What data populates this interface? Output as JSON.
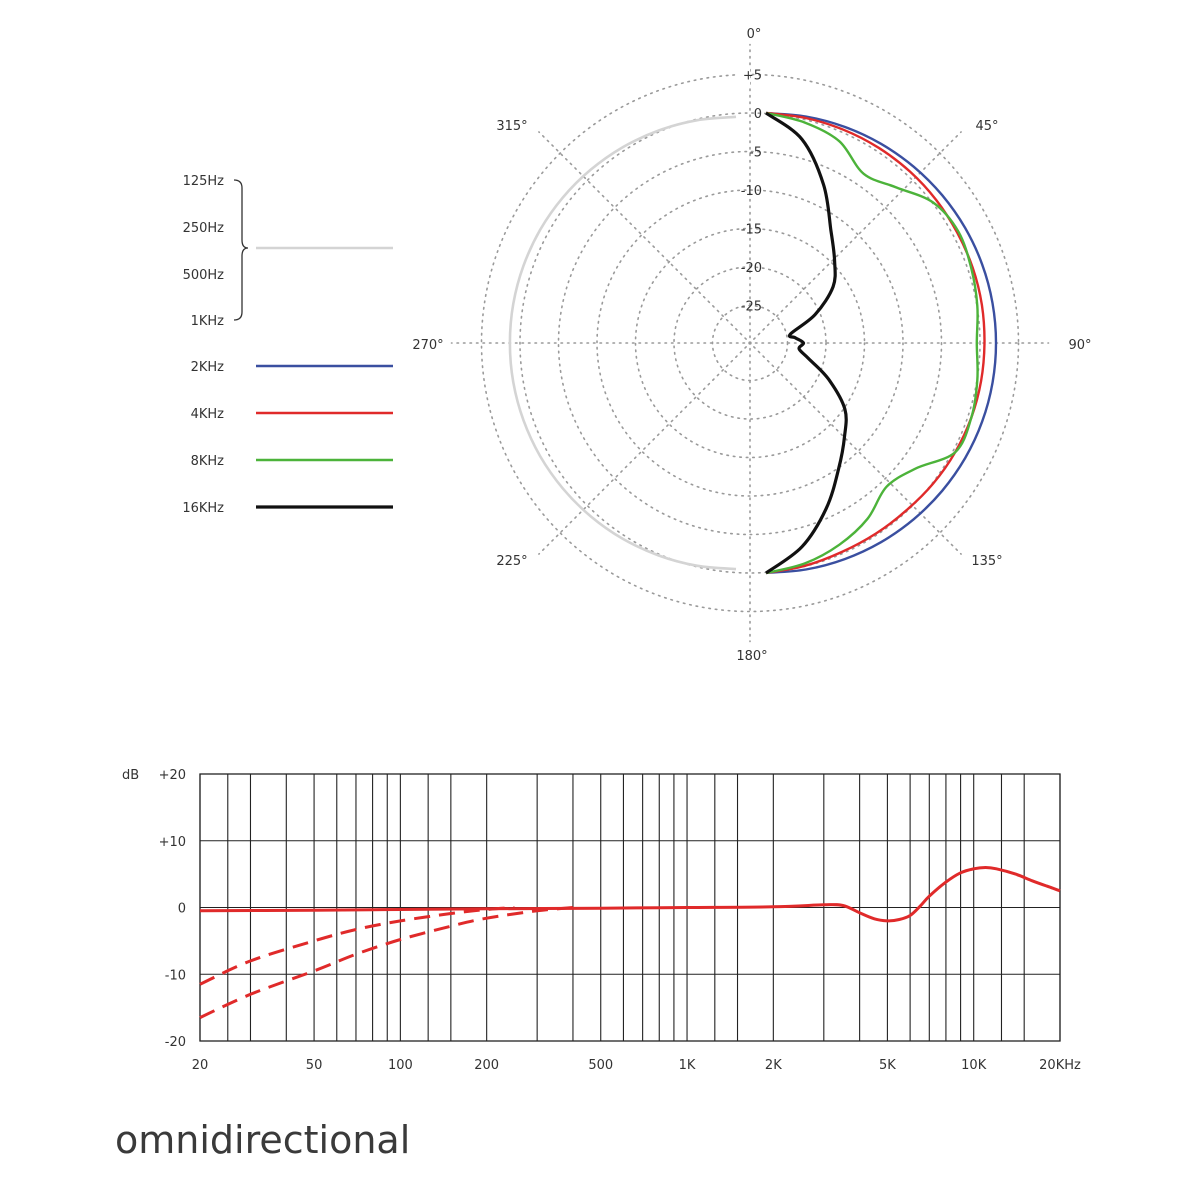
{
  "caption": "omnidirectional",
  "chart_data": [
    {
      "type": "polar",
      "title": "",
      "angle_labels": [
        "0°",
        "45°",
        "90°",
        "135°",
        "180°",
        "225°",
        "270°",
        "315°"
      ],
      "angle_values_deg": [
        0,
        45,
        90,
        135,
        180,
        225,
        270,
        315
      ],
      "radial_ticks": [
        "+5",
        "0",
        "-5",
        "-10",
        "-15",
        "-20",
        "-25"
      ],
      "radial_tick_values": [
        5,
        0,
        -5,
        -10,
        -15,
        -20,
        -25
      ],
      "rlim": [
        -30,
        5
      ],
      "grid": true,
      "legend_position": "left",
      "legend_group_labels": [
        "125Hz",
        "250Hz",
        "500Hz",
        "1KHz"
      ],
      "series": [
        {
          "name": "125Hz–1KHz",
          "color": "#d4d4d4",
          "angles": [
            180,
            190,
            200,
            210,
            220,
            230,
            240,
            250,
            260,
            270,
            280,
            290,
            300,
            310,
            320,
            330,
            340,
            350,
            360
          ],
          "values": [
            -0.5,
            -0.5,
            -0.5,
            -0.5,
            -0.5,
            -0.5,
            -0.5,
            -0.5,
            -0.5,
            -0.5,
            -0.5,
            -0.5,
            -0.5,
            -0.5,
            -0.5,
            -0.5,
            -0.5,
            -0.5,
            -0.5
          ]
        },
        {
          "name": "2KHz",
          "color": "#3a4fa0",
          "angles": [
            0,
            10,
            20,
            30,
            40,
            50,
            60,
            70,
            80,
            90,
            100,
            110,
            120,
            130,
            140,
            150,
            160,
            170,
            180
          ],
          "values": [
            0,
            0,
            0,
            0,
            0,
            0,
            0,
            0,
            0,
            0,
            0,
            0,
            0,
            0,
            0,
            0,
            0,
            0,
            0
          ]
        },
        {
          "name": "4KHz",
          "color": "#e02a2a",
          "angles": [
            0,
            10,
            20,
            30,
            40,
            50,
            60,
            70,
            80,
            90,
            100,
            110,
            120,
            130,
            140,
            150,
            160,
            170,
            180
          ],
          "values": [
            0,
            -0.2,
            -0.4,
            -0.6,
            -0.8,
            -1.0,
            -1.2,
            -1.3,
            -1.4,
            -1.5,
            -1.5,
            -1.5,
            -1.5,
            -1.5,
            -1.5,
            -1.3,
            -1.0,
            -0.5,
            0
          ]
        },
        {
          "name": "8KHz",
          "color": "#4cb33a",
          "angles": [
            0,
            10,
            20,
            30,
            40,
            50,
            60,
            70,
            80,
            90,
            100,
            110,
            120,
            130,
            140,
            150,
            160,
            170,
            180
          ],
          "values": [
            0,
            -0.8,
            -2.0,
            -4.5,
            -3.5,
            -1.5,
            -1.0,
            -1.5,
            -2.0,
            -2.5,
            -2.0,
            -1.5,
            -1.5,
            -4.5,
            -5.5,
            -3.5,
            -2.0,
            -0.8,
            0
          ]
        },
        {
          "name": "16KHz",
          "color": "#111111",
          "angles": [
            0,
            10,
            20,
            30,
            40,
            50,
            60,
            70,
            80,
            90,
            100,
            110,
            120,
            130,
            140,
            150,
            160,
            170,
            180
          ],
          "values": [
            0,
            -3.0,
            -8.0,
            -13.0,
            -16.0,
            -18.5,
            -22.5,
            -26.5,
            -26.0,
            -25.0,
            -25.5,
            -24.0,
            -20.5,
            -16.5,
            -14.0,
            -11.0,
            -7.0,
            -3.0,
            0
          ]
        }
      ]
    },
    {
      "type": "line",
      "title": "",
      "xscale": "log",
      "xlim": [
        20,
        20000
      ],
      "ylim": [
        -20,
        20
      ],
      "grid": true,
      "ylabel": "dB",
      "x_ticks": [
        20,
        50,
        100,
        200,
        500,
        1000,
        2000,
        5000,
        10000,
        20000
      ],
      "x_tick_labels": [
        "20",
        "50",
        "100",
        "200",
        "500",
        "1K",
        "2K",
        "5K",
        "10K",
        "20KHz"
      ],
      "y_ticks": [
        20,
        10,
        0,
        -10,
        -20
      ],
      "y_tick_labels": [
        "+20",
        "+10",
        "0",
        "-10",
        "-20"
      ],
      "grid_x": [
        20,
        25,
        30,
        40,
        50,
        60,
        70,
        80,
        90,
        100,
        125,
        150,
        200,
        300,
        400,
        500,
        600,
        700,
        800,
        900,
        1000,
        1250,
        1500,
        2000,
        3000,
        4000,
        5000,
        6000,
        7000,
        8000,
        9000,
        10000,
        12500,
        15000,
        20000
      ],
      "series": [
        {
          "color": "#e02a2a",
          "style": "solid",
          "x": [
            20,
            50,
            100,
            200,
            500,
            1000,
            2000,
            3000,
            3500,
            4000,
            4500,
            5000,
            5500,
            6000,
            6500,
            7000,
            8000,
            9000,
            10000,
            11000,
            12000,
            14000,
            16000,
            18000,
            20000
          ],
          "y": [
            -0.5,
            -0.4,
            -0.3,
            -0.2,
            -0.1,
            0,
            0.1,
            0.4,
            0.3,
            -0.8,
            -1.7,
            -2.0,
            -1.8,
            -1.2,
            0.2,
            1.7,
            3.8,
            5.2,
            5.8,
            6.0,
            5.8,
            5.0,
            4.0,
            3.2,
            2.5
          ]
        },
        {
          "color": "#e02a2a",
          "style": "dashed",
          "x": [
            20,
            30,
            50,
            70,
            100,
            150,
            200,
            250
          ],
          "y": [
            -11.5,
            -8.0,
            -5.0,
            -3.3,
            -2.0,
            -0.9,
            -0.3,
            0
          ]
        },
        {
          "color": "#e02a2a",
          "style": "dashed",
          "x": [
            20,
            30,
            50,
            70,
            100,
            150,
            200,
            300,
            400
          ],
          "y": [
            -16.5,
            -13.0,
            -9.5,
            -7.0,
            -4.8,
            -2.8,
            -1.6,
            -0.5,
            0
          ]
        }
      ]
    }
  ]
}
